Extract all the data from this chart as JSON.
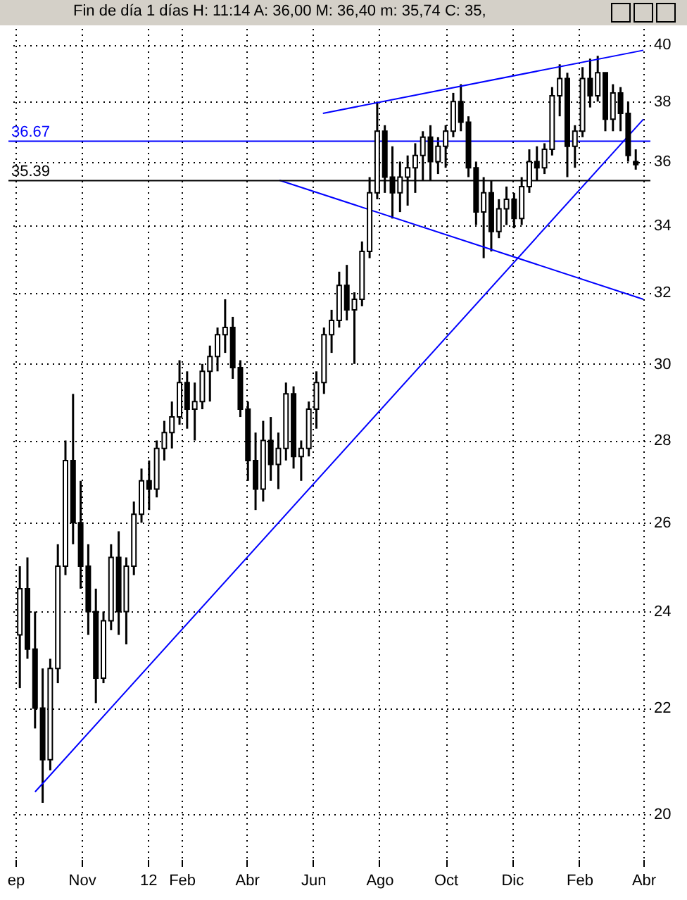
{
  "chart_data": {
    "type": "candlestick",
    "title": "Fin de día 1 días  H: 11:14  A: 36,00  M: 36,40  m: 35,74  C: 35,",
    "x": [
      "2011-09-05",
      "2011-09-12",
      "2011-09-19",
      "2011-09-26",
      "2011-10-03",
      "2011-10-10",
      "2011-10-17",
      "2011-10-24",
      "2011-10-31",
      "2011-11-07",
      "2011-11-14",
      "2011-11-21",
      "2011-11-28",
      "2011-12-05",
      "2011-12-12",
      "2011-12-19",
      "2011-12-26",
      "2012-01-02",
      "2012-01-09",
      "2012-01-16",
      "2012-01-23",
      "2012-01-30",
      "2012-02-06",
      "2012-02-13",
      "2012-02-20",
      "2012-02-27",
      "2012-03-05",
      "2012-03-12",
      "2012-03-19",
      "2012-03-26",
      "2012-04-02",
      "2012-04-09",
      "2012-04-16",
      "2012-04-23",
      "2012-04-30",
      "2012-05-07",
      "2012-05-14",
      "2012-05-21",
      "2012-05-28",
      "2012-06-04",
      "2012-06-11",
      "2012-06-18",
      "2012-06-25",
      "2012-07-02",
      "2012-07-09",
      "2012-07-16",
      "2012-07-23",
      "2012-07-30",
      "2012-08-06",
      "2012-08-13",
      "2012-08-20",
      "2012-08-27",
      "2012-09-03",
      "2012-09-10",
      "2012-09-17",
      "2012-09-24",
      "2012-10-01",
      "2012-10-08",
      "2012-10-15",
      "2012-10-22",
      "2012-10-29",
      "2012-11-05",
      "2012-11-12",
      "2012-11-19",
      "2012-11-26",
      "2012-12-03",
      "2012-12-10",
      "2012-12-17",
      "2012-12-24",
      "2012-12-31",
      "2013-01-07",
      "2013-01-14",
      "2013-01-21",
      "2013-01-28",
      "2013-02-04",
      "2013-02-11",
      "2013-02-18",
      "2013-02-25",
      "2013-03-04",
      "2013-03-11",
      "2013-03-18",
      "2013-03-25"
    ],
    "ohlc": [
      [
        23.5,
        25.0,
        22.4,
        24.5
      ],
      [
        24.5,
        25.2,
        23.0,
        23.2
      ],
      [
        23.2,
        24.0,
        21.6,
        22.0
      ],
      [
        22.0,
        22.8,
        20.2,
        21.0
      ],
      [
        21.0,
        23.0,
        20.8,
        22.8
      ],
      [
        22.8,
        25.5,
        22.5,
        25.0
      ],
      [
        25.0,
        28.0,
        24.8,
        27.5
      ],
      [
        27.5,
        29.2,
        25.5,
        26.0
      ],
      [
        26.0,
        27.0,
        24.5,
        25.0
      ],
      [
        25.0,
        25.5,
        23.5,
        24.0
      ],
      [
        24.0,
        24.5,
        22.1,
        22.6
      ],
      [
        22.6,
        24.0,
        22.5,
        23.8
      ],
      [
        23.8,
        25.5,
        23.6,
        25.2
      ],
      [
        25.2,
        25.8,
        23.5,
        24.0
      ],
      [
        24.0,
        25.2,
        23.3,
        25.0
      ],
      [
        25.0,
        26.5,
        24.8,
        26.2
      ],
      [
        26.2,
        27.3,
        26.0,
        27.0
      ],
      [
        27.0,
        27.5,
        26.3,
        26.8
      ],
      [
        26.8,
        28.0,
        26.6,
        27.8
      ],
      [
        27.8,
        28.5,
        27.5,
        28.2
      ],
      [
        28.2,
        29.0,
        27.8,
        28.6
      ],
      [
        28.6,
        30.1,
        28.4,
        29.5
      ],
      [
        29.5,
        29.8,
        28.3,
        28.8
      ],
      [
        28.8,
        29.5,
        28.0,
        29.0
      ],
      [
        29.0,
        30.0,
        28.8,
        29.8
      ],
      [
        29.8,
        30.5,
        29.0,
        30.2
      ],
      [
        30.2,
        31.0,
        29.8,
        30.8
      ],
      [
        30.8,
        31.8,
        30.3,
        31.0
      ],
      [
        31.0,
        31.3,
        29.6,
        29.9
      ],
      [
        29.9,
        30.1,
        28.6,
        28.8
      ],
      [
        28.8,
        29.0,
        27.0,
        27.5
      ],
      [
        27.5,
        28.2,
        26.3,
        26.8
      ],
      [
        26.8,
        28.5,
        26.5,
        28.0
      ],
      [
        28.0,
        28.6,
        27.0,
        27.4
      ],
      [
        27.4,
        28.2,
        26.8,
        27.8
      ],
      [
        27.8,
        29.5,
        27.5,
        29.2
      ],
      [
        29.2,
        29.4,
        27.3,
        27.6
      ],
      [
        27.6,
        28.0,
        27.0,
        27.8
      ],
      [
        27.8,
        29.0,
        27.6,
        28.8
      ],
      [
        28.8,
        29.8,
        28.3,
        29.5
      ],
      [
        29.5,
        31.0,
        29.2,
        30.8
      ],
      [
        30.8,
        31.5,
        30.3,
        31.2
      ],
      [
        31.2,
        32.6,
        31.0,
        32.2
      ],
      [
        32.2,
        32.8,
        31.2,
        31.5
      ],
      [
        31.5,
        32.0,
        30.0,
        31.8
      ],
      [
        31.8,
        33.5,
        31.6,
        33.2
      ],
      [
        33.2,
        35.5,
        33.0,
        35.0
      ],
      [
        35.0,
        38.0,
        34.8,
        37.0
      ],
      [
        37.0,
        37.2,
        35.0,
        35.5
      ],
      [
        35.5,
        36.5,
        34.2,
        35.0
      ],
      [
        35.0,
        36.0,
        34.4,
        35.5
      ],
      [
        35.5,
        36.2,
        34.6,
        35.8
      ],
      [
        35.8,
        36.6,
        35.0,
        36.2
      ],
      [
        36.2,
        37.0,
        35.4,
        36.8
      ],
      [
        36.8,
        37.2,
        35.4,
        36.0
      ],
      [
        36.0,
        36.8,
        35.6,
        36.5
      ],
      [
        36.5,
        37.2,
        35.8,
        37.0
      ],
      [
        37.0,
        38.3,
        36.8,
        38.0
      ],
      [
        38.0,
        38.6,
        37.0,
        37.3
      ],
      [
        37.3,
        37.5,
        35.5,
        35.8
      ],
      [
        35.8,
        36.0,
        34.0,
        34.4
      ],
      [
        34.4,
        35.5,
        33.0,
        35.0
      ],
      [
        35.0,
        35.4,
        33.2,
        33.8
      ],
      [
        33.8,
        34.8,
        33.6,
        34.5
      ],
      [
        34.5,
        35.2,
        34.0,
        34.8
      ],
      [
        34.8,
        35.0,
        33.9,
        34.2
      ],
      [
        34.2,
        35.5,
        34.0,
        35.2
      ],
      [
        35.2,
        36.4,
        35.0,
        36.0
      ],
      [
        36.0,
        36.5,
        35.4,
        35.8
      ],
      [
        35.8,
        36.6,
        35.6,
        36.4
      ],
      [
        36.4,
        38.5,
        36.2,
        38.2
      ],
      [
        38.2,
        39.3,
        37.5,
        38.8
      ],
      [
        38.8,
        39.0,
        35.5,
        36.5
      ],
      [
        36.5,
        37.2,
        35.8,
        37.0
      ],
      [
        37.0,
        39.2,
        36.8,
        38.8
      ],
      [
        38.8,
        39.5,
        37.8,
        38.2
      ],
      [
        38.2,
        39.6,
        38.0,
        39.0
      ],
      [
        39.0,
        39.0,
        37.0,
        37.4
      ],
      [
        37.4,
        38.6,
        37.0,
        38.3
      ],
      [
        38.3,
        38.5,
        37.0,
        37.6
      ],
      [
        37.6,
        38.0,
        36.0,
        36.2
      ],
      [
        36.0,
        36.4,
        35.74,
        35.9
      ]
    ],
    "color": "#000000",
    "series": [
      {
        "type": "line",
        "color": "#0000ff",
        "x": [
          "2011-09-19",
          "2013-04-01"
        ],
        "values": [
          20.4,
          37.4
        ]
      },
      {
        "type": "line",
        "color": "#0000ff",
        "x": [
          "2012-06-10",
          "2013-04-01"
        ],
        "values": [
          37.6,
          39.8
        ]
      },
      {
        "type": "line",
        "color": "#0000ff",
        "x": [
          "2012-05-01",
          "2013-04-01"
        ],
        "values": [
          35.4,
          31.8
        ]
      }
    ],
    "ref_lines": [
      {
        "axis": "y",
        "value": 36.67,
        "label": "36.67",
        "color": "#0000ff"
      },
      {
        "axis": "y",
        "value": 35.39,
        "label": "35.39",
        "color": "#000000"
      }
    ],
    "log": true,
    "xlim": [
      "2011-09-01",
      "2013-04-01"
    ],
    "xticks": [
      {
        "value": "2011-09-01",
        "label": "ep"
      },
      {
        "value": "2011-11-01",
        "label": "Nov"
      },
      {
        "value": "2012-01-01",
        "label": "12"
      },
      {
        "value": "2012-02-01",
        "label": "Feb"
      },
      {
        "value": "2012-04-01",
        "label": "Abr"
      },
      {
        "value": "2012-06-01",
        "label": "Jun"
      },
      {
        "value": "2012-08-01",
        "label": "Ago"
      },
      {
        "value": "2012-10-01",
        "label": "Oct"
      },
      {
        "value": "2012-12-01",
        "label": "Dic"
      },
      {
        "value": "2013-02-01",
        "label": "Feb"
      },
      {
        "value": "2013-04-01",
        "label": "Abr"
      }
    ],
    "ylim": [
      19.2,
      40.6
    ],
    "yticks": [
      20,
      22,
      24,
      26,
      28,
      30,
      32,
      34,
      36,
      38,
      40
    ],
    "grid": true
  }
}
